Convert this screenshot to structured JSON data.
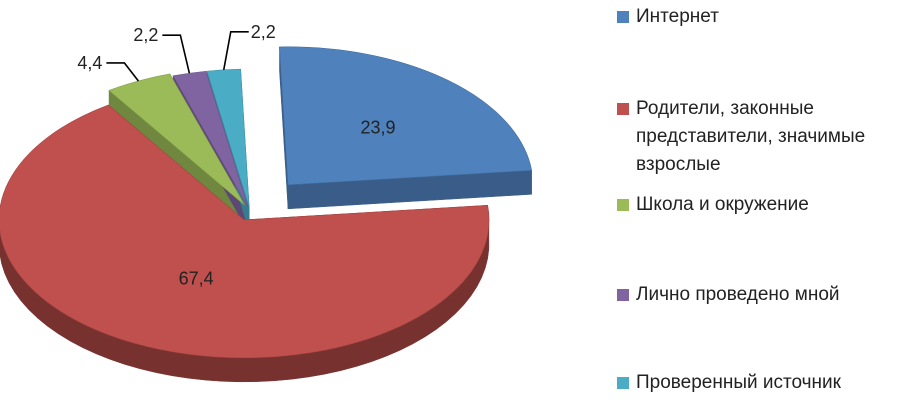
{
  "chart_data": {
    "type": "pie",
    "title": "",
    "style": "3d-exploded",
    "legend_position": "right",
    "slices": [
      {
        "label": "Интернет",
        "value": 23.9,
        "display": "23,9",
        "color": "#4F81BD"
      },
      {
        "label": "Родители, законные представители, значимые взрослые",
        "value": 67.4,
        "display": "67,4",
        "color": "#C0504D"
      },
      {
        "label": "Школа и окружение",
        "value": 4.4,
        "display": "4,4",
        "color": "#9BBB59"
      },
      {
        "label": "Лично проведено мной",
        "value": 2.2,
        "display": "2,2",
        "color": "#8064A2"
      },
      {
        "label": "Проверенный источник",
        "value": 2.2,
        "display": "2,2",
        "color": "#4BACC6"
      }
    ]
  }
}
